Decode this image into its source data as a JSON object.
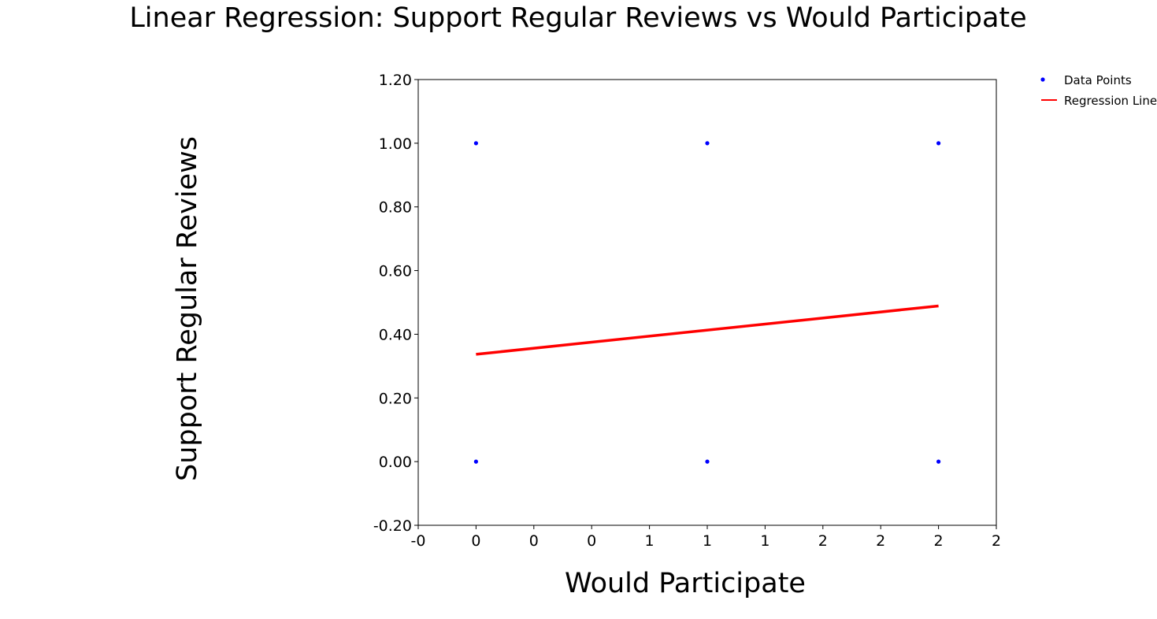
{
  "chart_data": {
    "type": "scatter",
    "title": "Linear Regression: Support Regular Reviews vs Would Participate",
    "xlabel": "Would Participate",
    "ylabel": "Support Regular Reviews",
    "xlim": [
      -0.25,
      2.25
    ],
    "ylim": [
      -0.2,
      1.2
    ],
    "x_ticks": [
      -0.25,
      0,
      0.25,
      0.5,
      0.75,
      1,
      1.25,
      1.5,
      1.75,
      2,
      2.25
    ],
    "x_tick_labels": [
      "-0",
      "0",
      "0",
      "0",
      "1",
      "1",
      "1",
      "2",
      "2",
      "2",
      "2"
    ],
    "y_ticks": [
      -0.2,
      0,
      0.2,
      0.4,
      0.6,
      0.8,
      1.0,
      1.2
    ],
    "y_tick_labels": [
      "-0.20",
      "0.00",
      "0.20",
      "0.40",
      "0.60",
      "0.80",
      "1.00",
      "1.20"
    ],
    "grid": false,
    "legend_position": "top-right-outside",
    "series": [
      {
        "name": "Data Points",
        "type": "scatter",
        "color": "#0000ff",
        "points": [
          {
            "x": 0,
            "y": 1
          },
          {
            "x": 1,
            "y": 1
          },
          {
            "x": 2,
            "y": 1
          },
          {
            "x": 0,
            "y": 0
          },
          {
            "x": 1,
            "y": 0
          },
          {
            "x": 2,
            "y": 0
          }
        ]
      },
      {
        "name": "Regression Line",
        "type": "line",
        "color": "#ff0000",
        "points": [
          {
            "x": 0,
            "y": 0.337
          },
          {
            "x": 2,
            "y": 0.489
          }
        ]
      }
    ]
  }
}
